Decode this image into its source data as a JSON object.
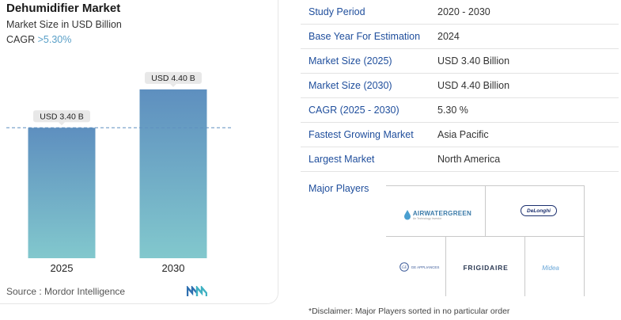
{
  "header": {
    "title": "Dehumidifier Market",
    "subtitle": "Market Size in USD Billion",
    "cagr_label": "CAGR ",
    "cagr_value": ">5.30%"
  },
  "chart_data": {
    "type": "bar",
    "title": "Dehumidifier Market",
    "ylabel": "Market Size in USD Billion",
    "categories": [
      "2025",
      "2030"
    ],
    "values": [
      3.4,
      4.4
    ],
    "data_labels": [
      "USD 3.40 B",
      "USD 4.40 B"
    ],
    "ylim": [
      0,
      4.5
    ],
    "reference_line_value": 3.4,
    "grid": false,
    "colors": {
      "bar_top": "#5e8fbf",
      "bar_bottom": "#82c8cd",
      "reference_line": "#5e8fbf",
      "label_bg": "#e8e8e8"
    }
  },
  "footer": {
    "source": "Source :  Mordor Intelligence"
  },
  "table": {
    "rows": [
      {
        "label": "Study Period",
        "value": "2020 - 2030"
      },
      {
        "label": "Base Year For Estimation",
        "value": "2024"
      },
      {
        "label": "Market Size (2025)",
        "value": "USD 3.40 Billion"
      },
      {
        "label": "Market Size (2030)",
        "value": "USD 4.40 Billion"
      },
      {
        "label": "CAGR (2025 - 2030)",
        "value": "5.30 %"
      },
      {
        "label": "Fastest Growing Market",
        "value": "Asia Pacific"
      },
      {
        "label": "Largest Market",
        "value": "North America"
      }
    ],
    "players_label": "Major Players"
  },
  "players": {
    "awg": "AIRWATERGREEN",
    "awg_sub": "An Technology Investor",
    "delonghi": "DeLonghi",
    "ge": "GE APPLIANCES",
    "frigidaire": "FRIGIDAIRE",
    "midea": "Midea"
  },
  "disclaimer": "*Disclaimer: Major Players sorted in no particular order"
}
